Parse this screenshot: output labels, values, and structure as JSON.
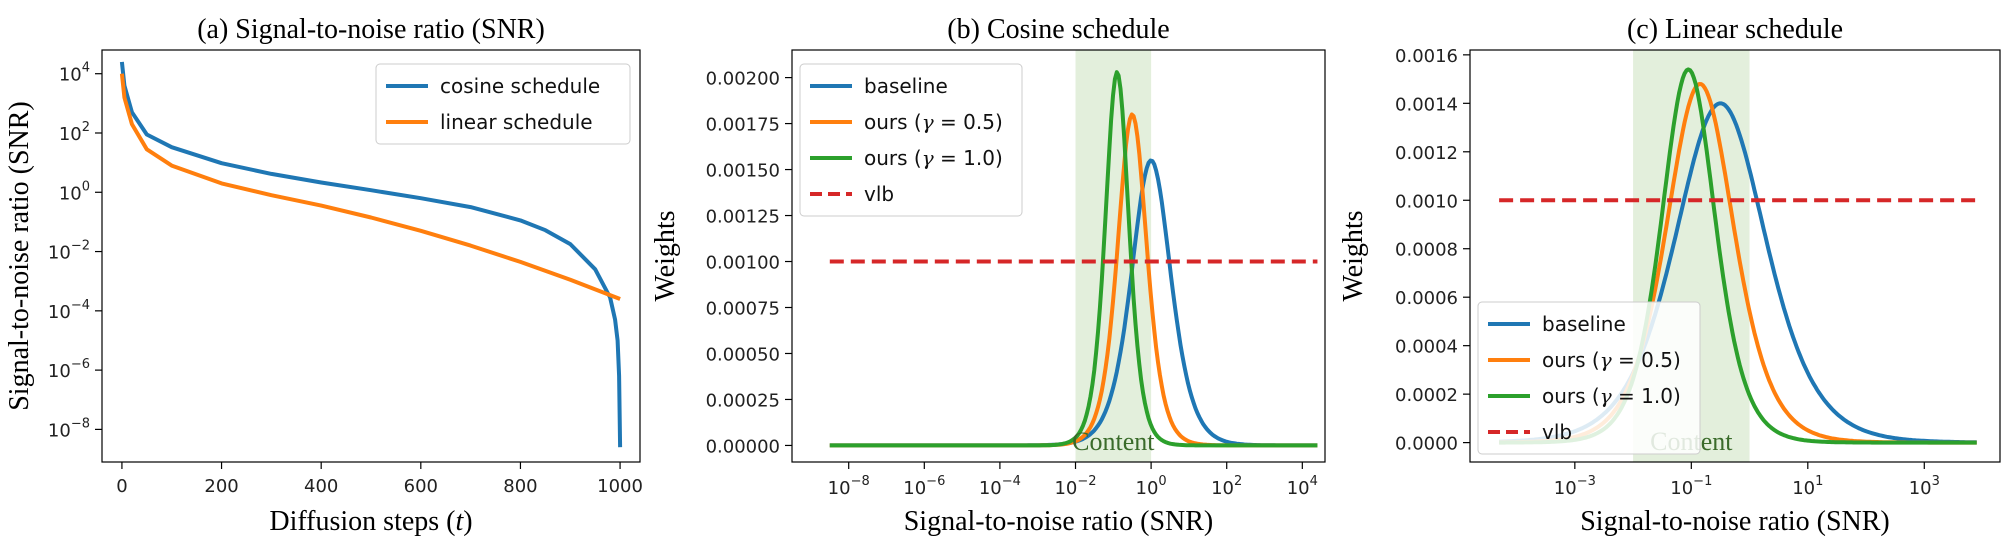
{
  "colors": {
    "baseline": "#1f77b4",
    "ours_05": "#ff7f0e",
    "ours_10": "#2ca02c",
    "vlb": "#d62728",
    "content_band": "#d9ead0",
    "content_text": "#3a6b2a"
  },
  "chart_data": [
    {
      "type": "line",
      "title": "(a) Signal-to-noise ratio (SNR)",
      "xlabel": "Diffusion steps (",
      "xlabel_var": "t",
      "xlabel_close": ")",
      "ylabel": "Signal-to-noise ratio (SNR)",
      "yscale": "log",
      "xlim": [
        -40,
        1040
      ],
      "ylim_log10": [
        -9.1,
        4.8
      ],
      "xticks": [
        0,
        200,
        400,
        600,
        800,
        1000
      ],
      "xtick_labels": [
        "0",
        "200",
        "400",
        "600",
        "800",
        "1000"
      ],
      "yticks_log10": [
        -8,
        -6,
        -4,
        -2,
        0,
        2,
        4
      ],
      "ytick_base": "10",
      "ytick_exponents": [
        "−8",
        "−6",
        "−4",
        "−2",
        "0",
        "2",
        "4"
      ],
      "legend_position": "top-right",
      "series": [
        {
          "name": "cosine schedule",
          "color_key": "baseline",
          "x": [
            0,
            5,
            20,
            50,
            100,
            200,
            300,
            400,
            500,
            600,
            700,
            800,
            850,
            900,
            950,
            980,
            990,
            995,
            998,
            1000
          ],
          "log10_snr": [
            4.4,
            3.6,
            2.7,
            1.95,
            1.52,
            0.98,
            0.62,
            0.33,
            0.07,
            -0.2,
            -0.5,
            -0.95,
            -1.28,
            -1.75,
            -2.6,
            -3.55,
            -4.3,
            -5.0,
            -6.2,
            -8.6
          ]
        },
        {
          "name": "linear schedule",
          "color_key": "ours_05",
          "x": [
            0,
            5,
            20,
            50,
            100,
            200,
            300,
            400,
            500,
            600,
            700,
            800,
            900,
            1000
          ],
          "log10_snr": [
            4.0,
            3.2,
            2.3,
            1.45,
            0.9,
            0.3,
            -0.1,
            -0.45,
            -0.85,
            -1.3,
            -1.8,
            -2.35,
            -2.95,
            -3.6
          ]
        }
      ]
    },
    {
      "type": "line",
      "title": "(b) Cosine schedule",
      "xlabel": "Signal-to-noise ratio (SNR)",
      "ylabel": "Weights",
      "xscale": "log",
      "xlim_log10": [
        -9.5,
        4.6
      ],
      "ylim": [
        -9e-05,
        0.00215
      ],
      "xticks_log10": [
        -8,
        -6,
        -4,
        -2,
        0,
        2,
        4
      ],
      "xtick_base": "10",
      "xtick_exponents": [
        "−8",
        "−6",
        "−4",
        "−2",
        "0",
        "2",
        "4"
      ],
      "yticks": [
        0.0,
        0.00025,
        0.0005,
        0.00075,
        0.001,
        0.00125,
        0.0015,
        0.00175,
        0.002
      ],
      "ytick_labels": [
        "0.00000",
        "0.00025",
        "0.00050",
        "0.00075",
        "0.00100",
        "0.00125",
        "0.00150",
        "0.00175",
        "0.00200"
      ],
      "content_band_log10": [
        -2,
        0
      ],
      "content_label": "Content",
      "legend_position": "top-left",
      "series": [
        {
          "name": "baseline",
          "color_key": "baseline",
          "dashed": false,
          "peak_log10": 0.0,
          "peak": 0.00155,
          "width": 0.7,
          "x_range_log10": [
            -8.5,
            4.4
          ]
        },
        {
          "name_prefix": "ours (",
          "name_var": "γ",
          "name_suffix": " = 0.5)",
          "color_key": "ours_05",
          "dashed": false,
          "peak_log10": -0.5,
          "peak": 0.0018,
          "width": 0.52,
          "x_range_log10": [
            -8.5,
            4.4
          ]
        },
        {
          "name_prefix": "ours (",
          "name_var": "γ",
          "name_suffix": " = 1.0)",
          "color_key": "ours_10",
          "dashed": false,
          "peak_log10": -0.9,
          "peak": 0.00203,
          "width": 0.42,
          "x_range_log10": [
            -8.5,
            4.4
          ]
        },
        {
          "name": "vlb",
          "color_key": "vlb",
          "dashed": true,
          "constant": 0.001,
          "x_range_log10": [
            -8.5,
            4.4
          ]
        }
      ]
    },
    {
      "type": "line",
      "title": "(c) Linear schedule",
      "xlabel": "Signal-to-noise ratio (SNR)",
      "ylabel": "Weights",
      "xscale": "log",
      "xlim_log10": [
        -4.8,
        4.3
      ],
      "ylim": [
        -8e-05,
        0.00162
      ],
      "xticks_log10": [
        -3,
        -1,
        1,
        3
      ],
      "xtick_base": "10",
      "xtick_exponents": [
        "−3",
        "−1",
        "1",
        "3"
      ],
      "yticks": [
        0.0,
        0.0002,
        0.0004,
        0.0006,
        0.0008,
        0.001,
        0.0012,
        0.0014,
        0.0016
      ],
      "ytick_labels": [
        "0.0000",
        "0.0002",
        "0.0004",
        "0.0006",
        "0.0008",
        "0.0010",
        "0.0012",
        "0.0014",
        "0.0016"
      ],
      "content_band_log10": [
        -2,
        0
      ],
      "content_label": "Content",
      "legend_position": "lower-left",
      "series": [
        {
          "name": "baseline",
          "color_key": "baseline",
          "dashed": false,
          "peak_log10": -0.5,
          "peak": 0.0014,
          "width": 1.05,
          "x_range_log10": [
            -4.3,
            3.9
          ]
        },
        {
          "name_prefix": "ours (",
          "name_var": "γ",
          "name_suffix": " = 0.5)",
          "color_key": "ours_05",
          "dashed": false,
          "peak_log10": -0.85,
          "peak": 0.00148,
          "width": 0.78,
          "x_range_log10": [
            -4.3,
            3.9
          ]
        },
        {
          "name_prefix": "ours (",
          "name_var": "γ",
          "name_suffix": " = 1.0)",
          "color_key": "ours_10",
          "dashed": false,
          "peak_log10": -1.05,
          "peak": 0.00154,
          "width": 0.62,
          "x_range_log10": [
            -4.3,
            3.9
          ]
        },
        {
          "name": "vlb",
          "color_key": "vlb",
          "dashed": true,
          "constant": 0.001,
          "x_range_log10": [
            -4.3,
            3.9
          ]
        }
      ]
    }
  ]
}
